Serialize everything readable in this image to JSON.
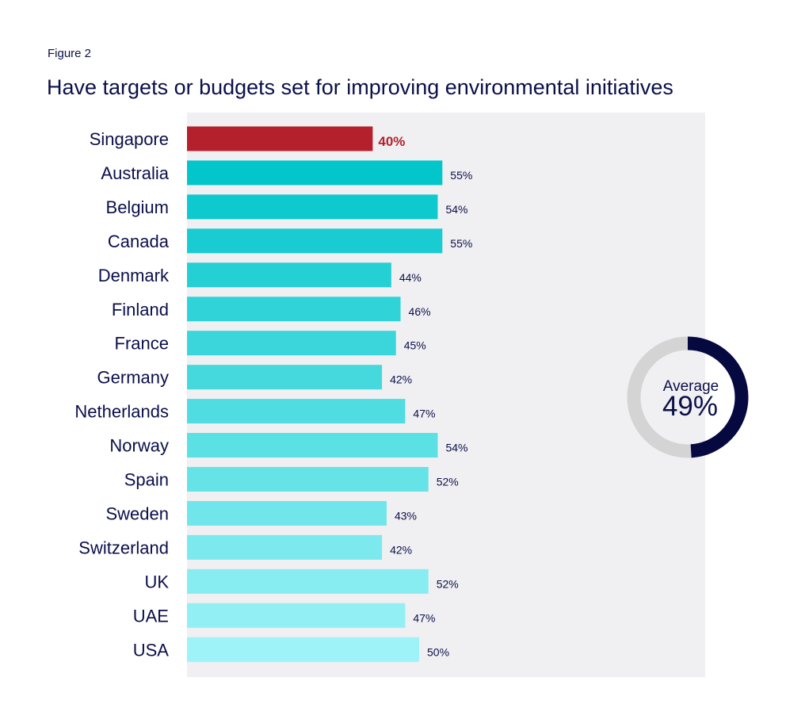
{
  "figure_label": "Figure 2",
  "title": "Have targets or budgets set for improving environmental initiatives",
  "colors": {
    "highlight": "#b5202d",
    "bar_top": "#03c6cb",
    "bar_bottom": "#9df3f7",
    "plot_bg": "#f0eff1",
    "text": "#0b0f4a",
    "donut_fill": "#06093f",
    "donut_track": "#d4d4d4"
  },
  "chart_data": {
    "type": "bar",
    "orientation": "horizontal",
    "title": "Have targets or budgets set for improving environmental initiatives",
    "categories": [
      "Singapore",
      "Australia",
      "Belgium",
      "Canada",
      "Denmark",
      "Finland",
      "France",
      "Germany",
      "Netherlands",
      "Norway",
      "Spain",
      "Sweden",
      "Switzerland",
      "UK",
      "UAE",
      "USA"
    ],
    "values": [
      40,
      55,
      54,
      55,
      44,
      46,
      45,
      42,
      47,
      54,
      52,
      43,
      42,
      52,
      47,
      50
    ],
    "value_labels": [
      "40%",
      "55%",
      "54%",
      "55%",
      "44%",
      "46%",
      "45%",
      "42%",
      "47%",
      "54%",
      "52%",
      "43%",
      "42%",
      "52%",
      "47%",
      "50%"
    ],
    "highlight_category": "Singapore",
    "xlim": [
      0,
      100
    ],
    "grid": false,
    "average": {
      "label": "Average",
      "value": 49,
      "value_label": "49%"
    }
  }
}
